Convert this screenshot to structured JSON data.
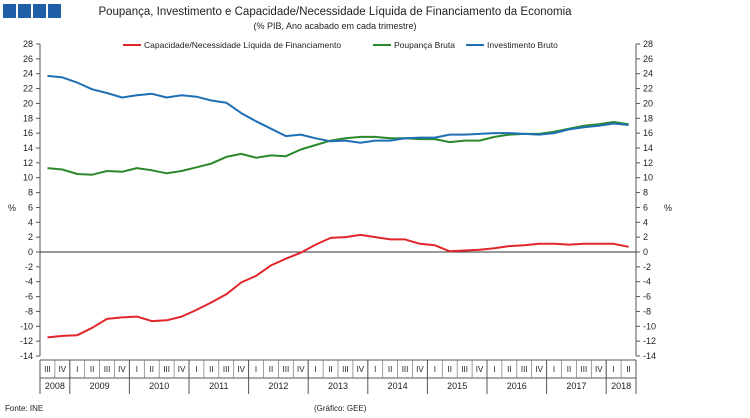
{
  "header": {
    "title": "Poupança, Investimento e Capacidade/Necessidade Líquida de Financiamento da Economia",
    "subtitle": "(% PIB, Ano acabado em cada trimestre)",
    "logo_color": "#1f5fa8"
  },
  "footer": {
    "source": "Fonte: INE",
    "credit": "(Gráfico: GEE)"
  },
  "chart_data": {
    "type": "line",
    "title": "Poupança, Investimento e Capacidade/Necessidade Líquida de Financiamento da Economia",
    "subtitle": "(% PIB, Ano acabado em cada trimestre)",
    "ylabel_left": "%",
    "ylabel_right": "%",
    "ylim": [
      -14,
      28
    ],
    "yticks": [
      28,
      26,
      24,
      22,
      20,
      18,
      16,
      14,
      12,
      10,
      8,
      6,
      4,
      2,
      0,
      -2,
      -4,
      -6,
      -8,
      -10,
      -12,
      -14
    ],
    "grid": false,
    "legend_position": "top",
    "quarters": [
      "III",
      "IV",
      "I",
      "II",
      "III",
      "IV",
      "I",
      "II",
      "III",
      "IV",
      "I",
      "II",
      "III",
      "IV",
      "I",
      "II",
      "III",
      "IV",
      "I",
      "II",
      "III",
      "IV",
      "I",
      "II",
      "III",
      "IV",
      "I",
      "II",
      "III",
      "IV",
      "I",
      "II",
      "III",
      "IV",
      "I",
      "II",
      "III",
      "IV",
      "I",
      "II"
    ],
    "years": [
      {
        "label": "2008",
        "start": 0,
        "count": 2
      },
      {
        "label": "2009",
        "start": 2,
        "count": 4
      },
      {
        "label": "2010",
        "start": 6,
        "count": 4
      },
      {
        "label": "2011",
        "start": 10,
        "count": 4
      },
      {
        "label": "2012",
        "start": 14,
        "count": 4
      },
      {
        "label": "2013",
        "start": 18,
        "count": 4
      },
      {
        "label": "2014",
        "start": 22,
        "count": 4
      },
      {
        "label": "2015",
        "start": 26,
        "count": 4
      },
      {
        "label": "2016",
        "start": 30,
        "count": 4
      },
      {
        "label": "2017",
        "start": 34,
        "count": 4
      },
      {
        "label": "2018",
        "start": 38,
        "count": 2
      }
    ],
    "series": [
      {
        "name": "Capacidade/Necessidade Líquida de Financiamento",
        "color": "#e0262a",
        "values": [
          -11.5,
          -11.3,
          -11.2,
          -10.2,
          -9.0,
          -8.8,
          -8.7,
          -9.3,
          -9.2,
          -8.7,
          -7.8,
          -6.8,
          -5.7,
          -4.1,
          -3.2,
          -1.8,
          -0.9,
          -0.1,
          1.0,
          1.9,
          2.0,
          2.3,
          2.0,
          1.7,
          1.7,
          1.1,
          0.9,
          0.1,
          0.2,
          0.3,
          0.5,
          0.8,
          0.9,
          1.1,
          1.1,
          1.0,
          1.1,
          1.1,
          1.1,
          0.7
        ]
      },
      {
        "name": "Poupança Bruta",
        "color": "#2a8a2a",
        "values": [
          11.3,
          11.1,
          10.5,
          10.4,
          10.9,
          10.8,
          11.3,
          11.0,
          10.6,
          10.9,
          11.4,
          11.9,
          12.8,
          13.2,
          12.7,
          13.0,
          12.9,
          13.8,
          14.4,
          15.0,
          15.3,
          15.5,
          15.5,
          15.3,
          15.3,
          15.2,
          15.2,
          14.8,
          15.0,
          15.0,
          15.5,
          15.8,
          15.9,
          15.9,
          16.2,
          16.6,
          17.0,
          17.2,
          17.5,
          17.2
        ]
      },
      {
        "name": "Investimento Bruto",
        "color": "#1f6fb5",
        "values": [
          23.7,
          23.5,
          22.8,
          21.9,
          21.4,
          20.8,
          21.1,
          21.3,
          20.8,
          21.1,
          20.9,
          20.4,
          20.1,
          18.7,
          17.6,
          16.6,
          15.6,
          15.8,
          15.3,
          14.9,
          15.0,
          14.7,
          15.0,
          15.0,
          15.3,
          15.4,
          15.4,
          15.8,
          15.8,
          15.9,
          16.0,
          16.0,
          15.9,
          15.8,
          16.0,
          16.5,
          16.8,
          17.0,
          17.3,
          17.1
        ]
      }
    ]
  }
}
